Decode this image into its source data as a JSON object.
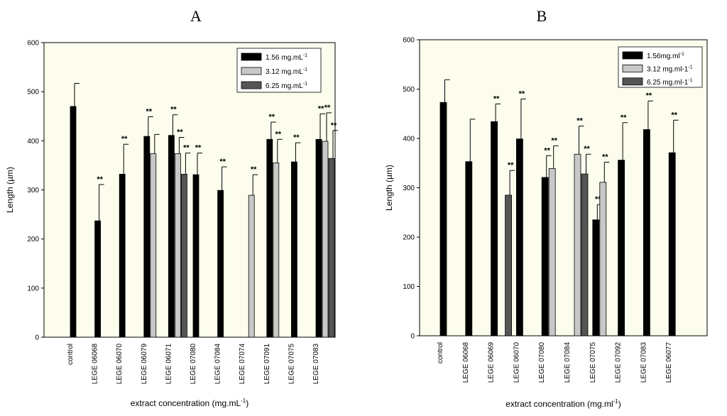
{
  "chart_data": [
    {
      "panel": "A",
      "type": "bar",
      "xlabel": "extract concentration (mg.mL",
      "xlabel_sup": "-1",
      "xlabel_tail": ")",
      "ylabel": "Length (µm)",
      "ylim": [
        0,
        600
      ],
      "yticks": [
        0,
        100,
        200,
        300,
        400,
        500,
        600
      ],
      "colors": {
        "plot_bg": "#fdfdee",
        "s1": "#000000",
        "s2": "#c8c8c8",
        "s3": "#555555"
      },
      "categories": [
        "control",
        "LEGE 06068",
        "LEGE 06070",
        "LEGE 06079",
        "LEGE 06071",
        "LEGE 07080",
        "LEGE 07084",
        "LEGE 07074",
        "LEGE 07091",
        "LEGE 07075",
        "LEGE 07083"
      ],
      "series": [
        {
          "name": "1.56 mg.mL",
          "sup": "-1",
          "values": [
            470,
            237,
            332,
            409,
            411,
            331,
            299,
            null,
            403,
            357,
            403
          ],
          "errors": [
            47,
            74,
            61,
            40,
            42,
            44,
            48,
            null,
            35,
            39,
            52
          ],
          "sig": [
            "",
            "**",
            "**",
            "**",
            "**",
            "**",
            "**",
            "",
            "**",
            "**",
            "**"
          ]
        },
        {
          "name": "3.12  mg.mL",
          "sup": "-1",
          "values": [
            null,
            null,
            null,
            374,
            374,
            null,
            null,
            289,
            355,
            null,
            399
          ],
          "errors": [
            null,
            null,
            null,
            39,
            33,
            null,
            null,
            42,
            48,
            null,
            58
          ],
          "sig": [
            "",
            "",
            "",
            "",
            "**",
            "",
            "",
            "**",
            "**",
            "",
            "**"
          ]
        },
        {
          "name": "6.25  mg.mL",
          "sup": "-1",
          "values": [
            null,
            null,
            null,
            null,
            332,
            null,
            null,
            null,
            null,
            null,
            364
          ],
          "errors": [
            null,
            null,
            null,
            null,
            43,
            null,
            null,
            null,
            null,
            null,
            57
          ],
          "sig": [
            "",
            "",
            "",
            "",
            "**",
            "",
            "",
            "",
            "",
            "",
            "**"
          ]
        }
      ]
    },
    {
      "panel": "B",
      "type": "bar",
      "xlabel": "extract concentration  (mg.ml",
      "xlabel_sup": "-1",
      "xlabel_tail": ")",
      "ylabel": "Length  (µm)",
      "ylim": [
        0,
        600
      ],
      "yticks": [
        0,
        100,
        200,
        300,
        400,
        500,
        600
      ],
      "colors": {
        "plot_bg": "#fdfdee",
        "s1": "#000000",
        "s2": "#c8c8c8",
        "s3": "#555555"
      },
      "categories": [
        "control",
        "LEGE 06068",
        "LEGE 06069",
        "LEGE 06070",
        "LEGE 07080",
        "LEGE 07084",
        "LEGE 07075",
        "LEGE 07092",
        "LEGE 07083",
        "LEGE 06077"
      ],
      "series": [
        {
          "name": "1.56mg.ml",
          "sup": "-1",
          "values": [
            473,
            353,
            434,
            399,
            321,
            null,
            235,
            356,
            418,
            371
          ],
          "errors": [
            46,
            86,
            36,
            81,
            44,
            null,
            31,
            76,
            58,
            66
          ],
          "sig": [
            "",
            "",
            "**",
            "**",
            "**",
            "",
            "**",
            "**",
            "**",
            "**"
          ]
        },
        {
          "name": "3.12 mg.ml-1",
          "sup": "-1",
          "values": [
            null,
            null,
            null,
            null,
            339,
            368,
            311,
            null,
            null,
            null
          ],
          "errors": [
            null,
            null,
            null,
            null,
            46,
            57,
            41,
            null,
            null,
            null
          ],
          "sig": [
            "",
            "",
            "",
            "",
            "**",
            "**",
            "**",
            "",
            "",
            ""
          ]
        },
        {
          "name": "6.25 mg.ml-1",
          "sup": "-1",
          "values": [
            null,
            null,
            285,
            null,
            null,
            328,
            null,
            null,
            null,
            null
          ],
          "errors": [
            null,
            null,
            50,
            null,
            null,
            40,
            null,
            null,
            null,
            null
          ],
          "sig": [
            "",
            "",
            "**",
            "",
            "",
            "**",
            "",
            "",
            "",
            ""
          ]
        }
      ]
    }
  ]
}
